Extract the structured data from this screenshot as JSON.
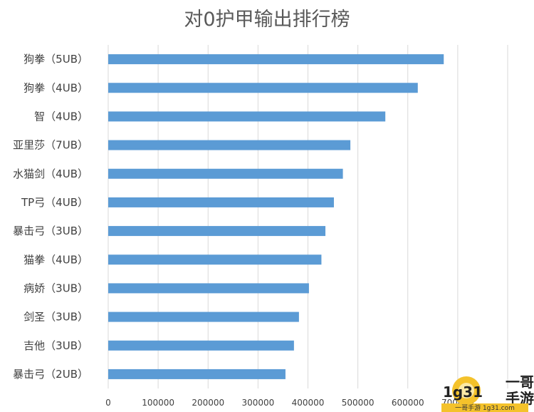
{
  "chart_data": {
    "type": "bar",
    "orientation": "horizontal",
    "title": "对0护甲输出排行榜",
    "xlabel": "",
    "ylabel": "",
    "xlim": [
      0,
      800000
    ],
    "x_ticks": [
      "0",
      "100000",
      "200000",
      "300000",
      "400000",
      "500000",
      "600000",
      "700000"
    ],
    "categories": [
      "狗拳（5UB）",
      "狗拳（4UB）",
      "智（4UB）",
      "亚里莎（7UB）",
      "水猫剑（4UB）",
      "TP弓（4UB）",
      "暴击弓（3UB）",
      "猫拳（4UB）",
      "病娇（3UB）",
      "剑圣（3UB）",
      "吉他（3UB）",
      "暴击弓（2UB）"
    ],
    "values": [
      672000,
      620000,
      555000,
      485000,
      470000,
      452000,
      435000,
      427000,
      402000,
      382000,
      372000,
      355000
    ],
    "bar_color": "#5B9BD5",
    "grid": "vertical"
  },
  "watermark": {
    "logo_text": "1g31",
    "brand_line1": "一哥",
    "brand_line2": "手游",
    "url": "一哥手游 1g31.com"
  }
}
